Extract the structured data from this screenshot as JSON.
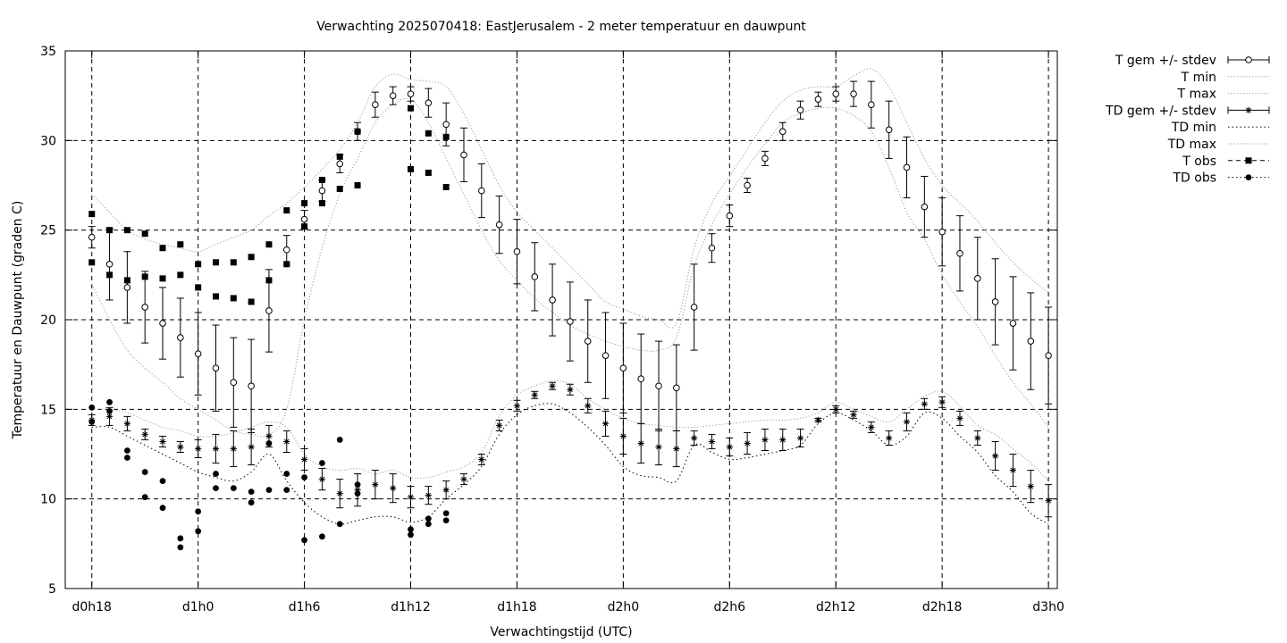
{
  "chart_data": {
    "type": "line",
    "title": "Verwachting 2025070418: EastJerusalem - 2 meter temperatuur en dauwpunt",
    "xlabel": "Verwachtingstijd (UTC)",
    "ylabel": "Temperatuur en Dauwpunt (graden C)",
    "x_unit": "hours since d0h18",
    "xlim": [
      -1.5,
      54.5
    ],
    "ylim": [
      5,
      35
    ],
    "yticks": [
      5,
      10,
      15,
      20,
      25,
      30,
      35
    ],
    "xticks": [
      {
        "x": 0,
        "label": "d0h18"
      },
      {
        "x": 6,
        "label": "d1h0"
      },
      {
        "x": 12,
        "label": "d1h6"
      },
      {
        "x": 18,
        "label": "d1h12"
      },
      {
        "x": 24,
        "label": "d1h18"
      },
      {
        "x": 30,
        "label": "d2h0"
      },
      {
        "x": 36,
        "label": "d2h6"
      },
      {
        "x": 42,
        "label": "d2h12"
      },
      {
        "x": 48,
        "label": "d2h18"
      },
      {
        "x": 54,
        "label": "d3h0"
      }
    ],
    "grid": true,
    "legend_position": "outside-top-right",
    "legend": [
      "T gem +/- stdev",
      "T min",
      "T max",
      "TD gem +/- stdev",
      "TD min",
      "TD max",
      "T obs",
      "TD obs"
    ],
    "x": [
      0,
      1,
      2,
      3,
      4,
      5,
      6,
      7,
      8,
      9,
      10,
      11,
      12,
      13,
      14,
      15,
      16,
      17,
      18,
      19,
      20,
      21,
      22,
      23,
      24,
      25,
      26,
      27,
      28,
      29,
      30,
      31,
      32,
      33,
      34,
      35,
      36,
      37,
      38,
      39,
      40,
      41,
      42,
      43,
      44,
      45,
      46,
      47,
      48,
      49,
      50,
      51,
      52,
      53,
      54
    ],
    "series": [
      {
        "name": "T gem +/- stdev",
        "marker": "open-circle",
        "mean": [
          24.6,
          23.1,
          21.8,
          20.7,
          19.8,
          19.0,
          18.1,
          17.3,
          16.5,
          16.3,
          20.5,
          23.9,
          25.6,
          27.2,
          28.7,
          30.5,
          32.0,
          32.5,
          32.6,
          32.1,
          30.9,
          29.2,
          27.2,
          25.3,
          23.8,
          22.4,
          21.1,
          19.9,
          18.8,
          18.0,
          17.3,
          16.7,
          16.3,
          16.2,
          20.7,
          24.0,
          25.8,
          27.5,
          29.0,
          30.5,
          31.7,
          32.3,
          32.6,
          32.6,
          32.0,
          30.6,
          28.5,
          26.3,
          24.9,
          23.7,
          22.3,
          21.0,
          19.8,
          18.8,
          18.0
        ],
        "stdev": [
          0.6,
          2.0,
          2.0,
          2.0,
          2.0,
          2.2,
          2.3,
          2.4,
          2.5,
          2.6,
          2.3,
          0.8,
          0.5,
          0.6,
          0.5,
          0.5,
          0.7,
          0.5,
          0.4,
          0.8,
          1.2,
          1.5,
          1.5,
          1.6,
          1.8,
          1.9,
          2.0,
          2.2,
          2.3,
          2.4,
          2.5,
          2.5,
          2.5,
          2.4,
          2.4,
          0.8,
          0.6,
          0.4,
          0.4,
          0.5,
          0.5,
          0.4,
          0.4,
          0.7,
          1.3,
          1.6,
          1.7,
          1.7,
          1.9,
          2.1,
          2.3,
          2.4,
          2.6,
          2.7,
          2.7
        ]
      },
      {
        "name": "T min",
        "style": "dotted",
        "values": [
          22.0,
          20.0,
          18.3,
          17.3,
          16.5,
          15.6,
          15.0,
          14.4,
          13.8,
          13.6,
          13.6,
          15.0,
          20.0,
          24.0,
          27.0,
          29.0,
          31.0,
          32.0,
          32.3,
          31.0,
          29.0,
          27.0,
          25.0,
          23.3,
          22.2,
          21.2,
          20.4,
          19.7,
          19.2,
          18.8,
          18.5,
          18.3,
          18.3,
          19.0,
          23.0,
          25.3,
          27.0,
          28.5,
          29.8,
          31.0,
          31.5,
          31.8,
          31.8,
          31.4,
          30.5,
          28.5,
          26.0,
          24.5,
          22.5,
          21.0,
          19.6,
          18.0,
          16.5,
          15.3,
          14.0
        ]
      },
      {
        "name": "T max",
        "style": "dotted",
        "values": [
          27.0,
          26.0,
          25.0,
          24.5,
          24.2,
          24.0,
          23.8,
          24.2,
          24.6,
          25.0,
          25.8,
          26.5,
          27.4,
          28.4,
          29.5,
          31.0,
          33.0,
          33.7,
          33.4,
          33.3,
          33.0,
          31.5,
          29.5,
          27.5,
          26.0,
          25.0,
          24.0,
          23.0,
          22.0,
          21.0,
          20.6,
          20.2,
          20.0,
          19.8,
          24.0,
          26.5,
          28.0,
          29.5,
          31.0,
          32.2,
          32.8,
          33.0,
          33.0,
          33.6,
          34.0,
          33.0,
          31.0,
          29.0,
          27.5,
          26.5,
          25.5,
          24.3,
          23.2,
          22.3,
          21.5
        ]
      },
      {
        "name": "TD gem +/- stdev",
        "marker": "asterisk",
        "mean": [
          14.4,
          14.6,
          14.2,
          13.6,
          13.2,
          12.9,
          12.8,
          12.8,
          12.8,
          12.9,
          13.5,
          13.2,
          12.2,
          11.1,
          10.3,
          10.5,
          10.8,
          10.6,
          10.1,
          10.2,
          10.5,
          11.1,
          12.2,
          14.1,
          15.2,
          15.8,
          16.3,
          16.1,
          15.2,
          14.2,
          13.5,
          13.1,
          12.9,
          12.8,
          13.4,
          13.2,
          12.9,
          13.1,
          13.3,
          13.3,
          13.4,
          14.4,
          15.0,
          14.7,
          14.0,
          13.4,
          14.3,
          15.3,
          15.4,
          14.5,
          13.4,
          12.4,
          11.6,
          10.7,
          9.9
        ],
        "stdev": [
          0.3,
          0.5,
          0.4,
          0.3,
          0.3,
          0.3,
          0.5,
          0.8,
          1.0,
          1.0,
          0.6,
          0.6,
          0.6,
          0.6,
          0.8,
          0.9,
          0.8,
          0.8,
          0.6,
          0.5,
          0.5,
          0.3,
          0.3,
          0.3,
          0.3,
          0.2,
          0.2,
          0.3,
          0.4,
          0.7,
          1.0,
          1.1,
          1.0,
          1.0,
          0.4,
          0.4,
          0.5,
          0.6,
          0.6,
          0.6,
          0.5,
          0.1,
          0.2,
          0.2,
          0.3,
          0.4,
          0.5,
          0.3,
          0.3,
          0.4,
          0.4,
          0.8,
          0.9,
          0.9,
          0.9
        ]
      },
      {
        "name": "TD min",
        "style": "dotted",
        "values": [
          14.0,
          14.0,
          13.5,
          13.0,
          12.5,
          12.0,
          11.5,
          11.2,
          11.0,
          11.5,
          12.5,
          11.0,
          9.8,
          9.0,
          8.6,
          8.8,
          9.0,
          9.0,
          8.7,
          9.0,
          10.0,
          10.8,
          11.8,
          13.6,
          14.7,
          15.2,
          15.3,
          14.8,
          14.0,
          13.0,
          11.8,
          11.3,
          11.2,
          11.0,
          13.0,
          12.6,
          12.2,
          12.3,
          12.5,
          12.7,
          13.0,
          14.2,
          14.8,
          14.4,
          13.8,
          13.0,
          13.5,
          14.8,
          14.5,
          13.5,
          12.6,
          11.3,
          10.4,
          9.2,
          8.6
        ]
      },
      {
        "name": "TD max",
        "style": "dotted",
        "values": [
          15.0,
          15.0,
          14.8,
          14.4,
          14.0,
          13.8,
          13.5,
          13.5,
          13.7,
          14.0,
          14.3,
          14.0,
          12.5,
          11.8,
          11.6,
          11.7,
          11.4,
          11.6,
          11.2,
          11.2,
          11.5,
          11.8,
          12.6,
          14.6,
          15.8,
          16.3,
          16.6,
          16.4,
          15.6,
          15.0,
          14.5,
          14.2,
          14.1,
          14.0,
          14.0,
          14.1,
          14.2,
          14.3,
          14.4,
          14.4,
          14.5,
          14.8,
          15.4,
          15.0,
          14.6,
          14.3,
          15.0,
          15.7,
          16.0,
          15.2,
          14.1,
          13.6,
          12.8,
          12.0,
          11.0
        ]
      },
      {
        "name": "T obs",
        "marker": "filled-square",
        "points": [
          [
            0,
            25.9
          ],
          [
            0,
            23.2
          ],
          [
            1,
            25.0
          ],
          [
            1,
            22.5
          ],
          [
            2,
            25.0
          ],
          [
            2,
            22.2
          ],
          [
            3,
            24.8
          ],
          [
            3,
            22.4
          ],
          [
            4,
            24.0
          ],
          [
            4,
            22.3
          ],
          [
            5,
            24.2
          ],
          [
            5,
            22.5
          ],
          [
            6,
            23.1
          ],
          [
            6,
            21.8
          ],
          [
            7,
            23.2
          ],
          [
            7,
            21.3
          ],
          [
            8,
            23.2
          ],
          [
            8,
            21.2
          ],
          [
            9,
            23.5
          ],
          [
            9,
            21.0
          ],
          [
            10,
            24.2
          ],
          [
            10,
            22.2
          ],
          [
            11,
            26.1
          ],
          [
            11,
            23.1
          ],
          [
            12,
            26.5
          ],
          [
            12,
            25.2
          ],
          [
            13,
            27.8
          ],
          [
            13,
            26.5
          ],
          [
            14,
            29.1
          ],
          [
            14,
            27.3
          ],
          [
            15,
            30.5
          ],
          [
            15,
            27.5
          ],
          [
            18,
            31.8
          ],
          [
            18,
            28.4
          ],
          [
            19,
            30.4
          ],
          [
            19,
            28.2
          ],
          [
            20,
            30.2
          ],
          [
            20,
            27.4
          ]
        ]
      },
      {
        "name": "TD obs",
        "marker": "filled-circle",
        "points": [
          [
            0,
            15.1
          ],
          [
            0,
            14.3
          ],
          [
            1,
            15.4
          ],
          [
            1,
            14.9
          ],
          [
            2,
            12.7
          ],
          [
            2,
            12.3
          ],
          [
            3,
            11.5
          ],
          [
            3,
            10.1
          ],
          [
            4,
            11.0
          ],
          [
            4,
            9.5
          ],
          [
            5,
            7.8
          ],
          [
            5,
            7.3
          ],
          [
            6,
            9.3
          ],
          [
            6,
            8.2
          ],
          [
            7,
            11.4
          ],
          [
            7,
            10.6
          ],
          [
            8,
            10.6
          ],
          [
            9,
            10.4
          ],
          [
            9,
            9.8
          ],
          [
            10,
            13.1
          ],
          [
            10,
            10.5
          ],
          [
            11,
            11.4
          ],
          [
            11,
            10.5
          ],
          [
            12,
            11.2
          ],
          [
            12,
            7.7
          ],
          [
            13,
            12.0
          ],
          [
            13,
            7.9
          ],
          [
            14,
            13.3
          ],
          [
            14,
            8.6
          ],
          [
            15,
            10.8
          ],
          [
            15,
            10.3
          ],
          [
            18,
            8.3
          ],
          [
            18,
            8.0
          ],
          [
            19,
            8.9
          ],
          [
            19,
            8.6
          ],
          [
            20,
            9.2
          ],
          [
            20,
            8.8
          ]
        ]
      }
    ]
  }
}
